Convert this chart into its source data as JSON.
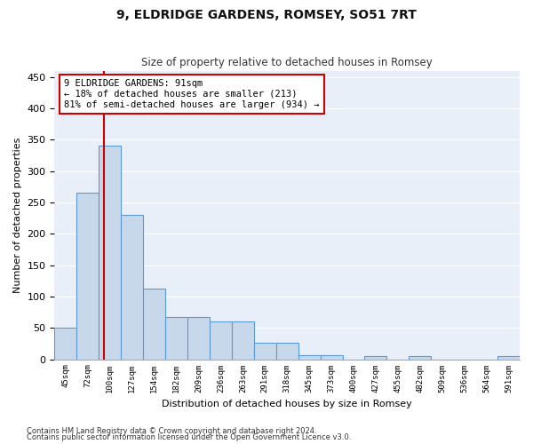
{
  "title": "9, ELDRIDGE GARDENS, ROMSEY, SO51 7RT",
  "subtitle": "Size of property relative to detached houses in Romsey",
  "xlabel": "Distribution of detached houses by size in Romsey",
  "ylabel": "Number of detached properties",
  "categories": [
    "45sqm",
    "72sqm",
    "100sqm",
    "127sqm",
    "154sqm",
    "182sqm",
    "209sqm",
    "236sqm",
    "263sqm",
    "291sqm",
    "318sqm",
    "345sqm",
    "373sqm",
    "400sqm",
    "427sqm",
    "455sqm",
    "482sqm",
    "509sqm",
    "536sqm",
    "564sqm",
    "591sqm"
  ],
  "values": [
    50,
    265,
    340,
    230,
    113,
    67,
    67,
    60,
    60,
    26,
    26,
    7,
    7,
    0,
    5,
    0,
    5,
    0,
    0,
    0,
    5
  ],
  "bar_color": "#c8d8eb",
  "bar_edge_color": "#5b9bd5",
  "bar_width": 1.0,
  "vline_x": 1.74,
  "vline_color": "#cc0000",
  "annotation_text": "9 ELDRIDGE GARDENS: 91sqm\n← 18% of detached houses are smaller (213)\n81% of semi-detached houses are larger (934) →",
  "annotation_box_color": "#cc0000",
  "ylim": [
    0,
    460
  ],
  "yticks": [
    0,
    50,
    100,
    150,
    200,
    250,
    300,
    350,
    400,
    450
  ],
  "background_color": "#e8eff8",
  "grid_color": "#ffffff",
  "fig_background": "#ffffff",
  "footer1": "Contains HM Land Registry data © Crown copyright and database right 2024.",
  "footer2": "Contains public sector information licensed under the Open Government Licence v3.0."
}
